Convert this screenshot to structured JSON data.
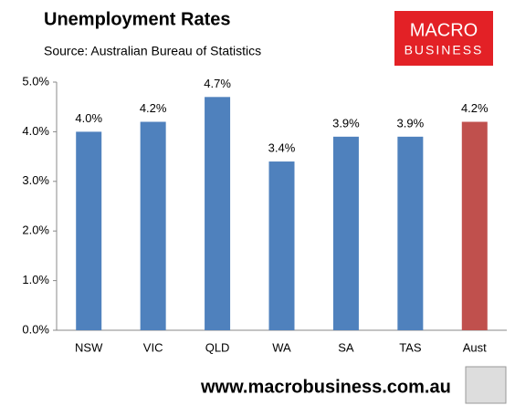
{
  "chart_data": {
    "type": "bar",
    "title": "Unemployment Rates",
    "subtitle": "Source: Australian Bureau of Statistics",
    "categories": [
      "NSW",
      "VIC",
      "QLD",
      "WA",
      "SA",
      "TAS",
      "Aust"
    ],
    "values": [
      4.0,
      4.2,
      4.7,
      3.4,
      3.9,
      3.9,
      4.2
    ],
    "value_labels": [
      "4.0%",
      "4.2%",
      "4.7%",
      "3.4%",
      "3.9%",
      "3.9%",
      "4.2%"
    ],
    "colors": [
      "#4f81bd",
      "#4f81bd",
      "#4f81bd",
      "#4f81bd",
      "#4f81bd",
      "#4f81bd",
      "#c0504d"
    ],
    "ylim": [
      0,
      5
    ],
    "yticks": [
      {
        "value": 0,
        "label": "0.0%"
      },
      {
        "value": 1,
        "label": "1.0%"
      },
      {
        "value": 2,
        "label": "2.0%"
      },
      {
        "value": 3,
        "label": "3.0%"
      },
      {
        "value": 4,
        "label": "4.0%"
      },
      {
        "value": 5,
        "label": "5.0%"
      }
    ],
    "grid": false
  },
  "logo": {
    "line1": "MACRO",
    "line2": "BUSINESS"
  },
  "footer": {
    "url": "www.macrobusiness.com.au"
  }
}
